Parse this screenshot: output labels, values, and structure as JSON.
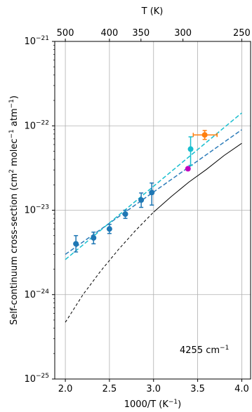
{
  "chart_data": {
    "type": "scatter",
    "xlabel_base": "1000/T (K",
    "xlabel_exp": "−1",
    "xlabel_close": ")",
    "top_xlabel": "T (K)",
    "ylabel_base": "Self-continuum cross-section (cm",
    "ylabel_exp1": "2",
    "ylabel_mid": " molec",
    "ylabel_exp2": "−1",
    "ylabel_mid2": " atm",
    "ylabel_exp3": "−1",
    "ylabel_close": ")",
    "annotation_base": "4255 cm",
    "annotation_exp": "−1",
    "xlim": [
      1.88,
      4.1
    ],
    "ylim_log10": [
      -25,
      -21
    ],
    "log_y": true,
    "grid": true,
    "x_ticks": [
      2.0,
      2.5,
      3.0,
      3.5,
      4.0
    ],
    "x_tick_labels": [
      "2.0",
      "2.5",
      "3.0",
      "3.5",
      "4.0"
    ],
    "y_ticks_log10": [
      -25,
      -24,
      -23,
      -22,
      -21
    ],
    "y_tick_mantissa": "10",
    "y_tick_exponents": [
      "−25",
      "−24",
      "−23",
      "−22",
      "−21"
    ],
    "top_ticks_T": [
      500,
      400,
      350,
      300,
      250
    ],
    "top_tick_labels": [
      "500",
      "400",
      "350",
      "300",
      "250"
    ],
    "colors": {
      "blue": "#1f77b4",
      "cyan": "#17becf",
      "orange": "#ff7f0e",
      "magenta": "#c000c0",
      "black": "#000000",
      "grid": "#b0b0b0"
    },
    "blue_points": [
      {
        "x": 2.12,
        "y": 4e-24,
        "ylo": 3.2e-24,
        "yhi": 5e-24
      },
      {
        "x": 2.32,
        "y": 4.7e-24,
        "ylo": 4e-24,
        "yhi": 5.5e-24
      },
      {
        "x": 2.5,
        "y": 6e-24,
        "ylo": 5.3e-24,
        "yhi": 6.8e-24
      },
      {
        "x": 2.68,
        "y": 9e-24,
        "ylo": 8e-24,
        "yhi": 1e-23
      },
      {
        "x": 2.86,
        "y": 1.32e-23,
        "ylo": 1.08e-23,
        "yhi": 1.6e-23
      },
      {
        "x": 2.98,
        "y": 1.62e-23,
        "ylo": 1.15e-23,
        "yhi": 2.1e-23
      }
    ],
    "cyan_points": [
      {
        "x": 3.42,
        "y": 5.3e-23,
        "ylo": 3.4e-23,
        "yhi": 7.4e-23
      }
    ],
    "orange_points": [
      {
        "x": 3.58,
        "y": 7.8e-23,
        "ylo": 6.9e-23,
        "yhi": 8.8e-23,
        "xlo": 3.45,
        "xhi": 3.72
      }
    ],
    "magenta_points": [
      {
        "x": 3.39,
        "y": 3.1e-23
      }
    ],
    "fit_blue_dashed": [
      {
        "x": 2.0,
        "y": 3e-24
      },
      {
        "x": 4.0,
        "y": 9e-23
      }
    ],
    "fit_cyan_dashed": [
      {
        "x": 2.0,
        "y": 2.6e-24
      },
      {
        "x": 4.0,
        "y": 1.42e-22
      }
    ],
    "model_black_dashed": [
      {
        "x": 2.0,
        "y": 4.7e-25
      },
      {
        "x": 2.2,
        "y": 1e-24
      },
      {
        "x": 2.4,
        "y": 1.9e-24
      },
      {
        "x": 2.6,
        "y": 3.4e-24
      },
      {
        "x": 2.8,
        "y": 5.8e-24
      },
      {
        "x": 3.0,
        "y": 9.5e-24
      }
    ],
    "model_black_solid": [
      {
        "x": 3.0,
        "y": 9.5e-24
      },
      {
        "x": 3.2,
        "y": 1.45e-23
      },
      {
        "x": 3.4,
        "y": 2.15e-23
      },
      {
        "x": 3.6,
        "y": 3.05e-23
      },
      {
        "x": 3.8,
        "y": 4.45e-23
      },
      {
        "x": 4.0,
        "y": 6.2e-23
      }
    ]
  }
}
